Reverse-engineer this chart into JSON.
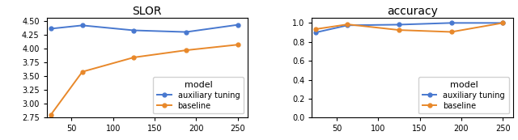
{
  "x": [
    25,
    63,
    125,
    188,
    250
  ],
  "slor_auxiliary": [
    4.36,
    4.42,
    4.33,
    4.3,
    4.43
  ],
  "slor_baseline": [
    2.8,
    3.58,
    3.84,
    3.97,
    4.07
  ],
  "acc_auxiliary": [
    0.9,
    0.975,
    0.982,
    1.0,
    1.0
  ],
  "acc_baseline": [
    0.935,
    0.985,
    0.925,
    0.905,
    1.0
  ],
  "slor_title": "SLOR",
  "acc_title": "accuracy",
  "slor_ylim": [
    2.75,
    4.55
  ],
  "slor_yticks": [
    2.75,
    3.0,
    3.25,
    3.5,
    3.75,
    4.0,
    4.25,
    4.5
  ],
  "acc_ylim": [
    0.0,
    1.05
  ],
  "acc_yticks": [
    0.0,
    0.2,
    0.4,
    0.6,
    0.8,
    1.0
  ],
  "xlim": [
    20,
    262
  ],
  "xticks": [
    50,
    100,
    150,
    200,
    250
  ],
  "color_auxiliary": "#4878cf",
  "color_baseline": "#e8882a",
  "legend_title": "model",
  "legend_auxiliary": "auxiliary tuning",
  "legend_baseline": "baseline",
  "marker": "o",
  "markersize": 3.5,
  "linewidth": 1.4,
  "title_fontsize": 10,
  "tick_labelsize": 7,
  "legend_fontsize": 7,
  "legend_title_fontsize": 8
}
